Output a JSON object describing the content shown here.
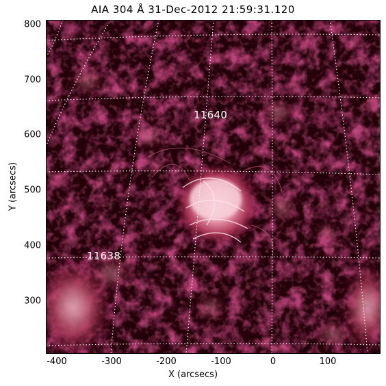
{
  "title": "AIA 304 Å 31-Dec-2012 21:59:31.120",
  "axes": {
    "xlabel": "X (arcsecs)",
    "ylabel": "Y (arcsecs)",
    "x_ticks": [
      "-400",
      "-300",
      "-200",
      "-100",
      "0",
      "100"
    ],
    "y_ticks": [
      "800",
      "700",
      "600",
      "500",
      "400",
      "300"
    ],
    "xlim": [
      -410,
      195
    ],
    "ylim": [
      205,
      810
    ]
  },
  "image": {
    "colormap": "sdo-aia-304",
    "grid_style": "dotted-white-heliographic"
  },
  "active_regions": [
    {
      "label": "11640",
      "x": -105,
      "y": 625
    },
    {
      "label": "11638",
      "x": -295,
      "y": 375
    }
  ],
  "colors": {
    "background": "#ffffff",
    "plasma_dark": "#1a0006",
    "plasma_mid": "#7a1030",
    "plasma_bright": "#f0b0bf",
    "grid": "#ffffff"
  }
}
